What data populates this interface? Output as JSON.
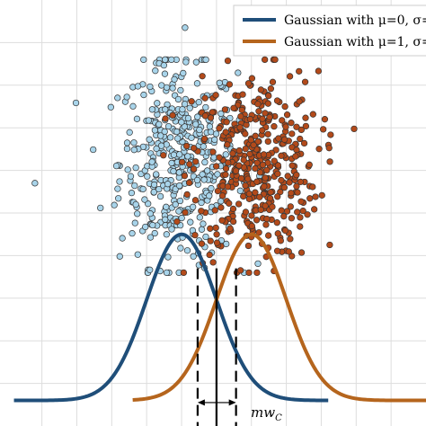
{
  "chart_data": {
    "type": "scatter",
    "title": "",
    "xlabel": "",
    "ylabel": "",
    "grid": true,
    "legend_position": "top-right",
    "xlim": [
      -2.6,
      3.5
    ],
    "ylim": [
      0,
      1.0
    ],
    "series": [
      {
        "name": "Gaussian with μ=0, σ=",
        "kind": "curve",
        "mu": 0,
        "sigma": 0.5,
        "color": "#1f4e79",
        "x_range": [
          -2.4,
          2.1
        ],
        "baseline_y": 0.06,
        "peak_y": 0.45
      },
      {
        "name": "Gaussian with μ=1, σ=",
        "kind": "curve",
        "mu": 1.0,
        "sigma": 0.5,
        "color": "#b5651d",
        "x_range": [
          -0.7,
          3.5
        ],
        "baseline_y": 0.06,
        "peak_y": 0.45
      },
      {
        "name": "",
        "kind": "points",
        "color": "#a8d4ea",
        "edge": "#333333",
        "center_x": -0.05,
        "center_y": 0.62,
        "spread_x": 0.42,
        "spread_y": 0.12,
        "count": 420,
        "outliers": [
          [
            -2.1,
            0.57
          ],
          [
            0.05,
            0.935
          ]
        ]
      },
      {
        "name": "",
        "kind": "points",
        "color": "#b34a1a",
        "edge": "#333333",
        "center_x": 1.05,
        "center_y": 0.61,
        "spread_x": 0.45,
        "spread_y": 0.11,
        "count": 430,
        "outliers": []
      }
    ],
    "vlines": [
      {
        "x": 0.5,
        "style": "solid",
        "y_top": 0.37,
        "y_bottom": 0.0
      },
      {
        "x": 0.23,
        "style": "dashed",
        "y_top": 0.37,
        "y_bottom": 0.0
      },
      {
        "x": 0.78,
        "style": "dashed",
        "y_top": 0.37,
        "y_bottom": 0.0
      }
    ],
    "arrow": {
      "x_from": 0.23,
      "x_to": 0.78,
      "y": 0.055
    },
    "annotations": [
      {
        "text": "mw_C",
        "x": 0.82,
        "y": 0.03
      }
    ]
  },
  "legend": {
    "entries": [
      {
        "label": "Gaussian with μ=0, σ=",
        "color": "#1f4e79"
      },
      {
        "label": "Gaussian with μ=1, σ=",
        "color": "#b5651d"
      }
    ]
  },
  "annotation_text": {
    "main": "mw",
    "subscript": "C"
  }
}
